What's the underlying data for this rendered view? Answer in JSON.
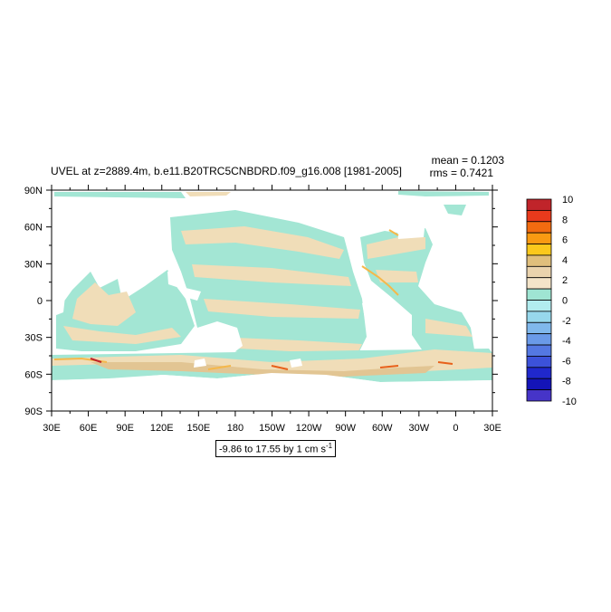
{
  "title": "UVEL at z=2889.4m, b.e11.B20TRC5CNBDRD.f09_g16.008 [1981-2005]",
  "stats": {
    "mean": "mean = 0.1203",
    "rms": "rms = 0.7421"
  },
  "range_label": {
    "text": "-9.86 to 17.55 by 1 cm s",
    "unit_exp": "-1"
  },
  "lat_labels": [
    "90N",
    "60N",
    "30N",
    "0",
    "30S",
    "60S",
    "90S"
  ],
  "lon_labels": [
    "30E",
    "60E",
    "90E",
    "120E",
    "150E",
    "180",
    "150W",
    "120W",
    "90W",
    "60W",
    "30W",
    "0",
    "30E"
  ],
  "colorbar": {
    "labels": [
      "10",
      "8",
      "6",
      "4",
      "2",
      "0",
      "-2",
      "-4",
      "-6",
      "-8",
      "-10"
    ],
    "colors": [
      "#c0242a",
      "#e83a1c",
      "#f26b10",
      "#f99a12",
      "#fbc81c",
      "#e0bf7c",
      "#ead3ad",
      "#f4e4c9",
      "#9fe5d3",
      "#b2ecef",
      "#97d8ec",
      "#80b8ec",
      "#6a9ae8",
      "#5478e2",
      "#3c52da",
      "#2028cc",
      "#1414b8",
      "#4634c8"
    ]
  },
  "map_colors": {
    "land": "#ffffff",
    "neg": "#a3e6d4",
    "pos1": "#f0ddb8",
    "pos2": "#e2c593",
    "pos3": "#f5b84a",
    "pos4": "#e8601a"
  }
}
